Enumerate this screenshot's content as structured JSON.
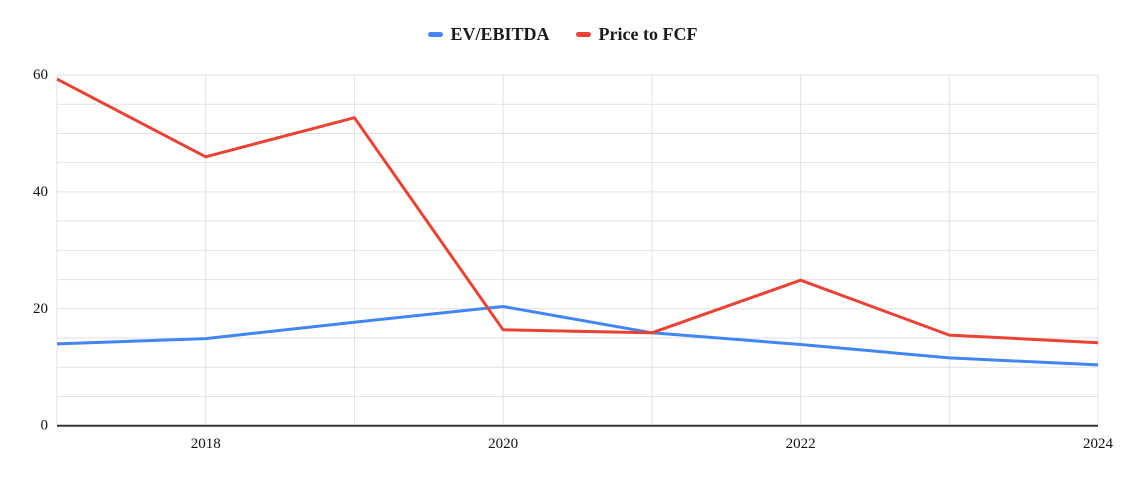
{
  "chart_data": {
    "type": "line",
    "title": "",
    "xlabel": "",
    "ylabel": "",
    "x": [
      2017,
      2018,
      2019,
      2020,
      2021,
      2022,
      2023,
      2024
    ],
    "series": [
      {
        "name": "EV/EBITDA",
        "color": "#4285f4",
        "values": [
          14.0,
          14.9,
          17.7,
          20.4,
          15.9,
          13.9,
          11.6,
          10.4
        ]
      },
      {
        "name": "Price to FCF",
        "color": "#ea4335",
        "values": [
          59.3,
          46.0,
          52.7,
          16.4,
          15.9,
          24.9,
          15.5,
          14.2
        ]
      }
    ],
    "xlim": [
      2017,
      2024
    ],
    "ylim": [
      0,
      60
    ],
    "x_tick_labels": [
      "2018",
      "2020",
      "2022",
      "2024"
    ],
    "x_tick_values": [
      2018,
      2020,
      2022,
      2024
    ],
    "y_tick_labels": [
      "0",
      "20",
      "40",
      "60"
    ],
    "y_tick_values": [
      0,
      20,
      40,
      60
    ],
    "x_grid_step": 1,
    "y_grid_step": 5,
    "grid": true,
    "legend_position": "top-center",
    "colors": {
      "grid": "#e2e2e2",
      "axis_baseline": "#333333",
      "tick_text": "#111111",
      "background": "#ffffff"
    }
  }
}
